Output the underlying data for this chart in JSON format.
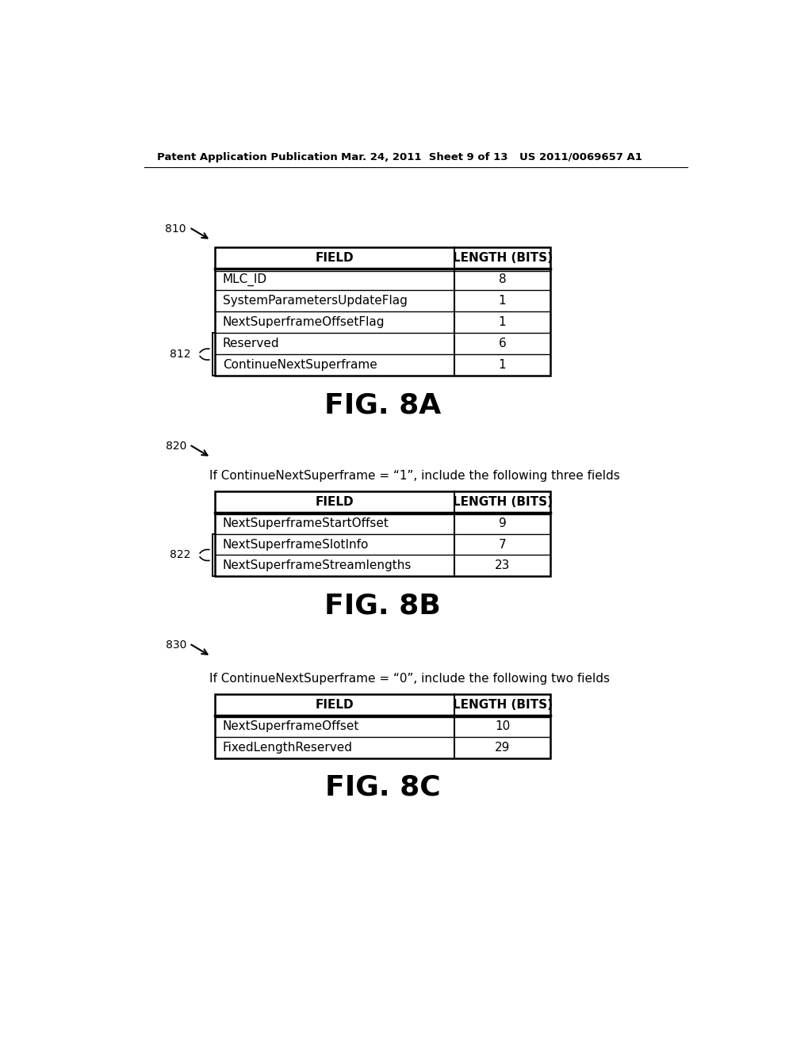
{
  "header_left": "Patent Application Publication",
  "header_mid": "Mar. 24, 2011  Sheet 9 of 13",
  "header_right": "US 2011/0069657 A1",
  "fig8a_label": "810",
  "fig8a_caption": "FIG. 8A",
  "table8a_header": [
    "FIELD",
    "LENGTH (BITS)"
  ],
  "table8a_rows": [
    [
      "MLC_ID",
      "8"
    ],
    [
      "SystemParametersUpdateFlag",
      "1"
    ],
    [
      "NextSuperframeOffsetFlag",
      "1"
    ],
    [
      "Reserved",
      "6"
    ],
    [
      "ContinueNextSuperframe",
      "1"
    ]
  ],
  "bracket8a_label": "812",
  "fig8b_label": "820",
  "fig8b_desc": "If ContinueNextSuperframe = “1”, include the following three fields",
  "fig8b_caption": "FIG. 8B",
  "table8b_header": [
    "FIELD",
    "LENGTH (BITS)"
  ],
  "table8b_rows": [
    [
      "NextSuperframeStartOffset",
      "9"
    ],
    [
      "NextSuperframeSlotInfo",
      "7"
    ],
    [
      "NextSuperframeStreamlengths",
      "23"
    ]
  ],
  "bracket8b_label": "822",
  "fig8c_label": "830",
  "fig8c_desc": "If ContinueNextSuperframe = “0”, include the following two fields",
  "fig8c_caption": "FIG. 8C",
  "table8c_header": [
    "FIELD",
    "LENGTH (BITS)"
  ],
  "table8c_rows": [
    [
      "NextSuperframeOffset",
      "10"
    ],
    [
      "FixedLengthReserved",
      "29"
    ]
  ],
  "bg_color": "#ffffff",
  "text_color": "#000000",
  "line_color": "#000000"
}
